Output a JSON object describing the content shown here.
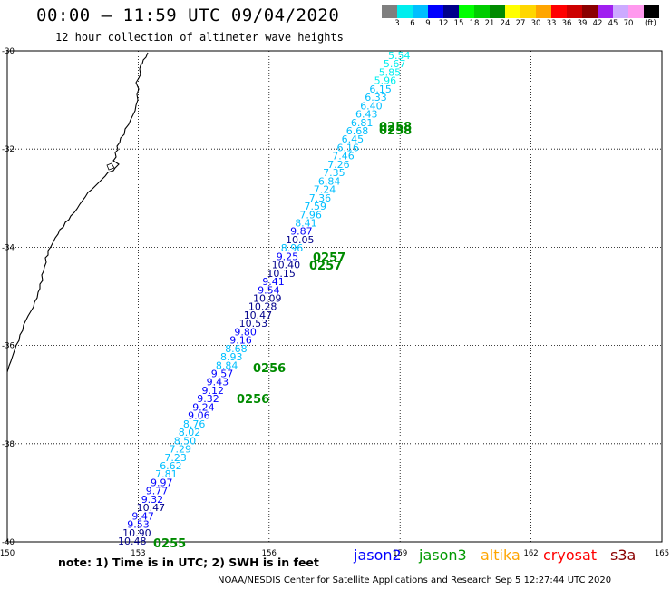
{
  "header": {
    "title": "00:00 – 11:59 UTC 09/04/2020",
    "subtitle": "12 hour collection of altimeter wave heights"
  },
  "color_scale": {
    "unit": "(ft)",
    "swatches": [
      {
        "color": "#7f7f7f",
        "label": ""
      },
      {
        "color": "#00eeee",
        "label": "3"
      },
      {
        "color": "#00bfff",
        "label": "6"
      },
      {
        "color": "#0000ff",
        "label": "9"
      },
      {
        "color": "#00008b",
        "label": "12"
      },
      {
        "color": "#00ff00",
        "label": "15"
      },
      {
        "color": "#00cd00",
        "label": "18"
      },
      {
        "color": "#008b00",
        "label": "21"
      },
      {
        "color": "#ffff00",
        "label": "24"
      },
      {
        "color": "#ffd700",
        "label": "27"
      },
      {
        "color": "#ffa500",
        "label": "30"
      },
      {
        "color": "#ff0000",
        "label": "33"
      },
      {
        "color": "#cd0000",
        "label": "36"
      },
      {
        "color": "#8b0000",
        "label": "39"
      },
      {
        "color": "#a020f0",
        "label": "42"
      },
      {
        "color": "#ccaaff",
        "label": "45"
      },
      {
        "color": "#ff99ee",
        "label": "70"
      },
      {
        "color": "#000000",
        "label": ""
      }
    ]
  },
  "map": {
    "lon_range": [
      150,
      165
    ],
    "lat_range": [
      -40,
      -30
    ],
    "lat_labels": [
      "-30",
      "-32",
      "-34",
      "-36",
      "-38",
      "-40"
    ],
    "lon_labels": [
      "150",
      "153",
      "156",
      "159",
      "162",
      "165"
    ],
    "grid_lats": [
      -32,
      -34,
      -36,
      -38
    ],
    "grid_lons": [
      153,
      156,
      159,
      162
    ]
  },
  "pass": {
    "heights": [
      {
        "v": "10.48",
        "c": "#00008b"
      },
      {
        "v": "10.90",
        "c": "#00008b"
      },
      {
        "v": "9.53",
        "c": "#0000ff"
      },
      {
        "v": "9.47",
        "c": "#0000ff"
      },
      {
        "v": "10.47",
        "c": "#00008b"
      },
      {
        "v": "9.32",
        "c": "#0000ff"
      },
      {
        "v": "9.77",
        "c": "#0000ff"
      },
      {
        "v": "9.97",
        "c": "#0000ff"
      },
      {
        "v": "7.81",
        "c": "#00bfff"
      },
      {
        "v": "6.62",
        "c": "#00bfff"
      },
      {
        "v": "7.23",
        "c": "#00bfff"
      },
      {
        "v": "7.29",
        "c": "#00bfff"
      },
      {
        "v": "8.50",
        "c": "#00bfff"
      },
      {
        "v": "8.02",
        "c": "#00bfff"
      },
      {
        "v": "8.76",
        "c": "#00bfff"
      },
      {
        "v": "9.06",
        "c": "#0000ff"
      },
      {
        "v": "9.24",
        "c": "#0000ff"
      },
      {
        "v": "9.32",
        "c": "#0000ff"
      },
      {
        "v": "9.12",
        "c": "#0000ff"
      },
      {
        "v": "9.43",
        "c": "#0000ff"
      },
      {
        "v": "9.57",
        "c": "#0000ff"
      },
      {
        "v": "8.84",
        "c": "#00bfff"
      },
      {
        "v": "8.93",
        "c": "#00bfff"
      },
      {
        "v": "8.68",
        "c": "#00bfff"
      },
      {
        "v": "9.16",
        "c": "#0000ff"
      },
      {
        "v": "9.80",
        "c": "#0000ff"
      },
      {
        "v": "10.53",
        "c": "#00008b"
      },
      {
        "v": "10.47",
        "c": "#00008b"
      },
      {
        "v": "10.28",
        "c": "#00008b"
      },
      {
        "v": "10.09",
        "c": "#00008b"
      },
      {
        "v": "9.54",
        "c": "#0000ff"
      },
      {
        "v": "9.41",
        "c": "#0000ff"
      },
      {
        "v": "10.15",
        "c": "#00008b"
      },
      {
        "v": "10.40",
        "c": "#00008b"
      },
      {
        "v": "9.25",
        "c": "#0000ff"
      },
      {
        "v": "8.96",
        "c": "#00bfff"
      },
      {
        "v": "10.05",
        "c": "#00008b"
      },
      {
        "v": "9.87",
        "c": "#0000ff"
      },
      {
        "v": "8.41",
        "c": "#00bfff"
      },
      {
        "v": "7.96",
        "c": "#00bfff"
      },
      {
        "v": "7.59",
        "c": "#00bfff"
      },
      {
        "v": "7.36",
        "c": "#00bfff"
      },
      {
        "v": "7.24",
        "c": "#00bfff"
      },
      {
        "v": "6.84",
        "c": "#00bfff"
      },
      {
        "v": "7.35",
        "c": "#00bfff"
      },
      {
        "v": "7.26",
        "c": "#00bfff"
      },
      {
        "v": "7.46",
        "c": "#00bfff"
      },
      {
        "v": "6.16",
        "c": "#00bfff"
      },
      {
        "v": "6.45",
        "c": "#00bfff"
      },
      {
        "v": "6.68",
        "c": "#00bfff"
      },
      {
        "v": "6.81",
        "c": "#00bfff"
      },
      {
        "v": "6.43",
        "c": "#00bfff"
      },
      {
        "v": "6.40",
        "c": "#00bfff"
      },
      {
        "v": "6.33",
        "c": "#00bfff"
      },
      {
        "v": "6.15",
        "c": "#00bfff"
      },
      {
        "v": "5.96",
        "c": "#00eeee"
      },
      {
        "v": "5.85",
        "c": "#00eeee"
      },
      {
        "v": "5.67",
        "c": "#00eeee"
      },
      {
        "v": "5.54",
        "c": "#00eeee"
      }
    ],
    "times": [
      "0255",
      "0256",
      "0256",
      "0257",
      "0257",
      "0258",
      "0258"
    ],
    "time_color": "#008b00"
  },
  "footer": {
    "note": "note: 1) Time is in UTC; 2) SWH is in feet",
    "satellites": [
      {
        "name": "jason2",
        "color": "#0000ff"
      },
      {
        "name": "jason3",
        "color": "#009900"
      },
      {
        "name": "altika",
        "color": "#ffa500"
      },
      {
        "name": "cryosat",
        "color": "#ff0000"
      },
      {
        "name": "s3a",
        "color": "#8b0000"
      }
    ],
    "credit": "NOAA/NESDIS Center for Satellite Applications and Research    Sep  5 12:27:44 UTC 2020"
  }
}
